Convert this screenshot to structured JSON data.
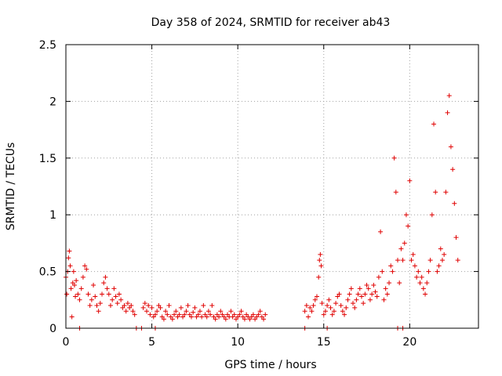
{
  "chart_data": {
    "type": "scatter",
    "title": "Day 358 of 2024, SRMTID for receiver ab43",
    "xlabel": "GPS time / hours",
    "ylabel": "SRMTID / TECUs",
    "xlim": [
      0,
      24
    ],
    "ylim": [
      0,
      2.5
    ],
    "xticks": [
      0,
      5,
      10,
      15,
      20
    ],
    "yticks": [
      0,
      0.5,
      1,
      1.5,
      2,
      2.5
    ],
    "xtick_labels": [
      "0",
      "5",
      "10",
      "15",
      "20"
    ],
    "ytick_labels": [
      "0",
      "0.5",
      "1",
      "1.5",
      "2",
      "2.5"
    ],
    "grid": true,
    "marker": "+",
    "color": "#e00000",
    "series": [
      {
        "name": "SRMTID",
        "x": [
          0.0,
          0.05,
          0.1,
          0.15,
          0.2,
          0.25,
          0.3,
          0.35,
          0.4,
          0.45,
          0.5,
          0.55,
          0.6,
          0.7,
          0.8,
          0.9,
          1.0,
          1.1,
          1.2,
          1.3,
          1.4,
          1.5,
          1.6,
          1.7,
          1.8,
          1.9,
          2.0,
          2.1,
          2.2,
          2.3,
          2.4,
          2.5,
          2.6,
          2.7,
          2.8,
          2.9,
          3.0,
          3.1,
          3.2,
          3.3,
          3.4,
          3.5,
          3.6,
          3.7,
          3.8,
          3.9,
          4.0,
          4.5,
          4.6,
          4.7,
          4.8,
          4.9,
          5.0,
          5.1,
          5.2,
          5.3,
          5.4,
          5.5,
          5.6,
          5.7,
          5.8,
          5.9,
          6.0,
          6.1,
          6.2,
          6.3,
          6.4,
          6.5,
          6.6,
          6.7,
          6.8,
          6.9,
          7.0,
          7.1,
          7.2,
          7.3,
          7.4,
          7.5,
          7.6,
          7.7,
          7.8,
          7.9,
          8.0,
          8.1,
          8.2,
          8.3,
          8.4,
          8.5,
          8.6,
          8.7,
          8.8,
          8.9,
          9.0,
          9.1,
          9.2,
          9.3,
          9.4,
          9.5,
          9.6,
          9.7,
          9.8,
          9.9,
          10.0,
          10.1,
          10.2,
          10.3,
          10.4,
          10.5,
          10.6,
          10.7,
          10.8,
          10.9,
          11.0,
          11.1,
          11.2,
          11.3,
          11.4,
          11.5,
          11.6,
          13.9,
          14.0,
          14.1,
          14.2,
          14.3,
          14.4,
          14.5,
          14.6,
          14.7,
          14.75,
          14.8,
          14.85,
          14.9,
          15.0,
          15.1,
          15.2,
          15.3,
          15.4,
          15.5,
          15.6,
          15.7,
          15.8,
          15.9,
          16.0,
          16.1,
          16.2,
          16.3,
          16.4,
          16.5,
          16.6,
          16.7,
          16.8,
          16.9,
          17.0,
          17.1,
          17.2,
          17.3,
          17.4,
          17.5,
          17.6,
          17.7,
          17.8,
          17.9,
          18.0,
          18.1,
          18.2,
          18.3,
          18.4,
          18.5,
          18.6,
          18.7,
          18.8,
          18.9,
          19.0,
          19.1,
          19.2,
          19.3,
          19.4,
          19.5,
          19.6,
          19.7,
          19.8,
          19.9,
          20.0,
          20.1,
          20.2,
          20.3,
          20.4,
          20.5,
          20.6,
          20.7,
          20.8,
          20.9,
          21.0,
          21.1,
          21.2,
          21.3,
          21.4,
          21.5,
          21.6,
          21.7,
          21.8,
          21.9,
          22.0,
          22.1,
          22.2,
          22.3,
          22.4,
          22.5,
          22.6,
          22.7,
          22.8,
          0.8,
          4.1,
          4.4,
          5.2,
          13.9,
          15.2,
          19.3,
          19.6
        ],
        "y": [
          0.45,
          0.3,
          0.5,
          0.62,
          0.68,
          0.55,
          0.35,
          0.1,
          0.4,
          0.5,
          0.38,
          0.28,
          0.42,
          0.3,
          0.25,
          0.35,
          0.45,
          0.55,
          0.52,
          0.3,
          0.2,
          0.25,
          0.38,
          0.28,
          0.2,
          0.15,
          0.22,
          0.3,
          0.4,
          0.45,
          0.35,
          0.3,
          0.2,
          0.25,
          0.35,
          0.28,
          0.22,
          0.3,
          0.25,
          0.18,
          0.2,
          0.15,
          0.22,
          0.18,
          0.2,
          0.15,
          0.12,
          0.18,
          0.22,
          0.15,
          0.2,
          0.12,
          0.18,
          0.1,
          0.12,
          0.15,
          0.2,
          0.18,
          0.1,
          0.08,
          0.15,
          0.12,
          0.2,
          0.1,
          0.08,
          0.12,
          0.15,
          0.1,
          0.12,
          0.18,
          0.1,
          0.12,
          0.15,
          0.2,
          0.12,
          0.1,
          0.14,
          0.18,
          0.1,
          0.12,
          0.15,
          0.1,
          0.2,
          0.12,
          0.1,
          0.15,
          0.12,
          0.2,
          0.1,
          0.08,
          0.12,
          0.1,
          0.15,
          0.12,
          0.1,
          0.08,
          0.12,
          0.1,
          0.15,
          0.1,
          0.12,
          0.08,
          0.1,
          0.12,
          0.15,
          0.1,
          0.08,
          0.12,
          0.1,
          0.08,
          0.1,
          0.12,
          0.08,
          0.1,
          0.12,
          0.15,
          0.1,
          0.08,
          0.12,
          0.15,
          0.2,
          0.1,
          0.18,
          0.15,
          0.2,
          0.25,
          0.28,
          0.45,
          0.6,
          0.65,
          0.55,
          0.22,
          0.12,
          0.15,
          0.2,
          0.25,
          0.18,
          0.12,
          0.15,
          0.22,
          0.28,
          0.3,
          0.2,
          0.15,
          0.12,
          0.18,
          0.25,
          0.3,
          0.35,
          0.22,
          0.18,
          0.25,
          0.3,
          0.35,
          0.28,
          0.22,
          0.3,
          0.38,
          0.35,
          0.25,
          0.3,
          0.38,
          0.32,
          0.28,
          0.45,
          0.85,
          0.5,
          0.25,
          0.35,
          0.3,
          0.4,
          0.55,
          0.5,
          1.5,
          1.2,
          0.6,
          0.4,
          0.7,
          0.6,
          0.75,
          1.0,
          0.9,
          1.3,
          0.6,
          0.65,
          0.55,
          0.45,
          0.5,
          0.4,
          0.45,
          0.35,
          0.3,
          0.4,
          0.5,
          0.6,
          1.0,
          1.8,
          1.2,
          0.5,
          0.55,
          0.7,
          0.6,
          0.65,
          1.2,
          1.9,
          2.05,
          1.6,
          1.4,
          1.1,
          0.8,
          0.6,
          0.0,
          0.0,
          0.0,
          0.0,
          0.0,
          0.0,
          0.0,
          0.0
        ]
      }
    ]
  }
}
